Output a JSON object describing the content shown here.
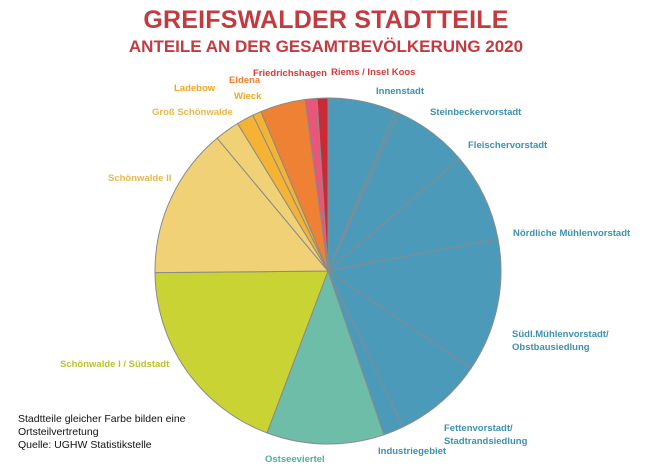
{
  "header": {
    "title": "GREIFSWALDER STADTTEILE",
    "subtitle": "ANTEILE AN DER GESAMTBEVÖLKERUNG 2020"
  },
  "footer": {
    "note_line1": "Stadtteile gleicher Farbe bilden eine",
    "note_line2": "Ortsteilvertretung",
    "source": "Quelle: UGHW Statistikstelle"
  },
  "chart_data": {
    "type": "pie",
    "title": "GREIFSWALDER STADTTEILE",
    "subtitle": "ANTEILE AN DER GESAMTBEVÖLKERUNG 2020",
    "start_angle_deg": 0,
    "direction": "clockwise",
    "grid": false,
    "legend": "none",
    "slices": [
      {
        "label": "Innenstadt",
        "value": 6.3,
        "color": "#4b9ab9",
        "label_color": "#3e90b0"
      },
      {
        "label": "Steinbeckervorstadt",
        "value": 0.4,
        "color": "#4b9ab9",
        "label_color": "#3e90b0"
      },
      {
        "label": "Fleischervorstadt",
        "value": 7.0,
        "color": "#4b9ab9",
        "label_color": "#3e90b0"
      },
      {
        "label": "Nördliche Mühlenvorstadt",
        "value": 8.2,
        "color": "#4b9ab9",
        "label_color": "#3e90b0"
      },
      {
        "label": "Südl.Mühlenvorstadt/\nObstbausiedlung",
        "value": 12.4,
        "color": "#4b9ab9",
        "label_color": "#3e90b0"
      },
      {
        "label": "Fettenvorstadt/\nStadtrandsiedlung",
        "value": 8.3,
        "color": "#4b9ab9",
        "label_color": "#3e90b0"
      },
      {
        "label": "Industriegebiet",
        "value": 1.9,
        "color": "#4b9ab9",
        "label_color": "#3e90b0"
      },
      {
        "label": "Ostseeviertel",
        "value": 10.9,
        "color": "#6dbda9",
        "label_color": "#4fb09a"
      },
      {
        "label": "Schönwalde I / Südstadt",
        "value": 19.0,
        "color": "#c9d334",
        "label_color": "#b9c42a"
      },
      {
        "label": "Schönwalde II",
        "value": 14.0,
        "color": "#f0d176",
        "label_color": "#e8b84a"
      },
      {
        "label": "Groß Schönwalde",
        "value": 2.3,
        "color": "#f0d176",
        "label_color": "#e8b84a"
      },
      {
        "label": "Wieck",
        "value": 1.6,
        "color": "#f5b335",
        "label_color": "#f0a81c"
      },
      {
        "label": "Eldena",
        "value": 0.8,
        "color": "#f5b335",
        "label_color": "#ef7d2e"
      },
      {
        "label": "Ladebow",
        "value": 0.0,
        "color": "#f5b335",
        "label_color": "#f0a81c"
      },
      {
        "label": "Friedrichshagen",
        "value": 4.2,
        "color": "#ee8133",
        "label_color": "#d63a3a"
      },
      {
        "label": "Riems / Insel Koos",
        "value": 1.1,
        "color": "#e8567a",
        "label_color": "#d63a3a"
      },
      {
        "label": "",
        "value": 1.0,
        "color": "#c92b36",
        "label_color": "#d63a3a"
      }
    ]
  }
}
